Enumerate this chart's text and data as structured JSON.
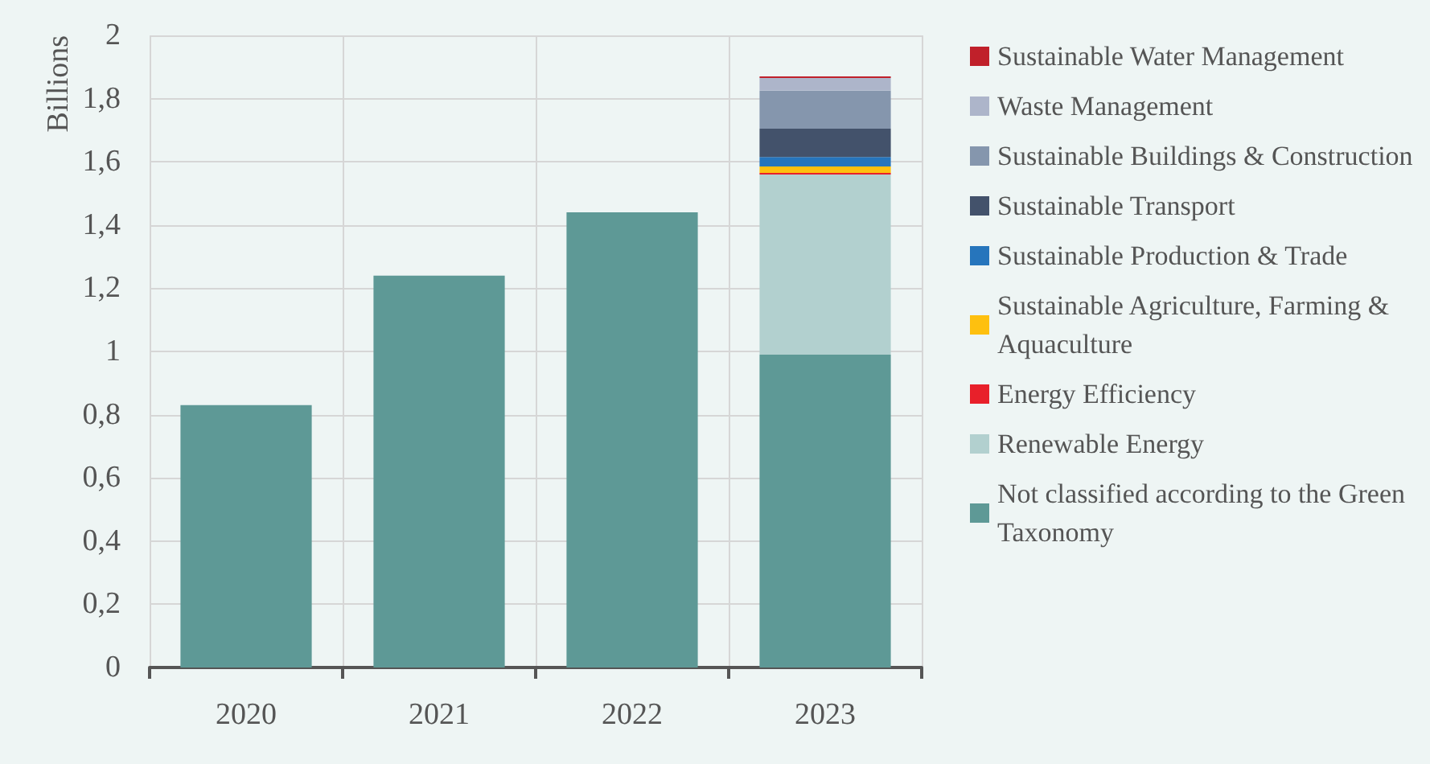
{
  "chart_data": {
    "type": "bar",
    "stacked": true,
    "ylabel": "Billions",
    "categories": [
      "2020",
      "2021",
      "2022",
      "2023"
    ],
    "series": [
      {
        "name": "Not classified according to the Green Taxonomy",
        "color": "#5e9996",
        "values": [
          0.83,
          1.24,
          1.44,
          0.99
        ]
      },
      {
        "name": "Renewable Energy",
        "color": "#b2d0cf",
        "values": [
          null,
          null,
          null,
          0.57
        ]
      },
      {
        "name": "Energy Efficiency",
        "color": "#e8202a",
        "values": [
          null,
          null,
          null,
          0.005
        ]
      },
      {
        "name": "Sustainable Agriculture, Farming & Aquaculture",
        "color": "#fec00f",
        "values": [
          null,
          null,
          null,
          0.02
        ]
      },
      {
        "name": "Sustainable Production & Trade",
        "color": "#2675bc",
        "values": [
          null,
          null,
          null,
          0.03
        ]
      },
      {
        "name": "Sustainable Transport",
        "color": "#43526b",
        "values": [
          null,
          null,
          null,
          0.09
        ]
      },
      {
        "name": "Sustainable Buildings & Construction",
        "color": "#8596ad",
        "values": [
          null,
          null,
          null,
          0.12
        ]
      },
      {
        "name": "Waste Management",
        "color": "#adb5ca",
        "values": [
          null,
          null,
          null,
          0.04
        ]
      },
      {
        "name": "Sustainable Water Management",
        "color": "#c0202a",
        "values": [
          null,
          null,
          null,
          0.005
        ]
      }
    ],
    "ylim": [
      0,
      2
    ],
    "yticks": [
      0,
      {
        "value": 0.2,
        "label": "0,2"
      },
      {
        "value": 0.4,
        "label": "0,4"
      },
      {
        "value": 0.6,
        "label": "0,6"
      },
      {
        "value": 0.8,
        "label": "0,8"
      },
      1,
      {
        "value": 1.2,
        "label": "1,2"
      },
      {
        "value": 1.4,
        "label": "1,4"
      },
      {
        "value": 1.6,
        "label": "1,6"
      },
      {
        "value": 1.8,
        "label": "1,8"
      },
      2
    ],
    "grid": true,
    "legend": "right"
  }
}
